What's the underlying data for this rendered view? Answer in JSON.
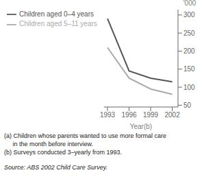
{
  "chart_data": {
    "type": "line",
    "x": [
      1993,
      1996,
      1999,
      2002
    ],
    "series": [
      {
        "name": "Children aged 0–4 years",
        "color": "#555555",
        "values": [
          290,
          145,
          125,
          115
        ]
      },
      {
        "name": "Children aged 5–11 years",
        "color": "#aaaaaa",
        "values": [
          210,
          125,
          95,
          80
        ]
      }
    ],
    "x_label": "Year(b)",
    "y_label": "'000",
    "xlim": [
      1992.5,
      2002.8
    ],
    "xticks": [
      1993,
      1996,
      1999,
      2002
    ],
    "ylim": [
      45,
      315
    ],
    "yticks": [
      50,
      100,
      150,
      200,
      250,
      300
    ],
    "legend": "top",
    "annotations": [
      "(a) Children whose parents wanted to use more formal care",
      "     in the month before interview.",
      "(b) Surveys conducted 3–yearly from 1993."
    ],
    "source": "Source: ABS 2002 Child Care Survey."
  }
}
